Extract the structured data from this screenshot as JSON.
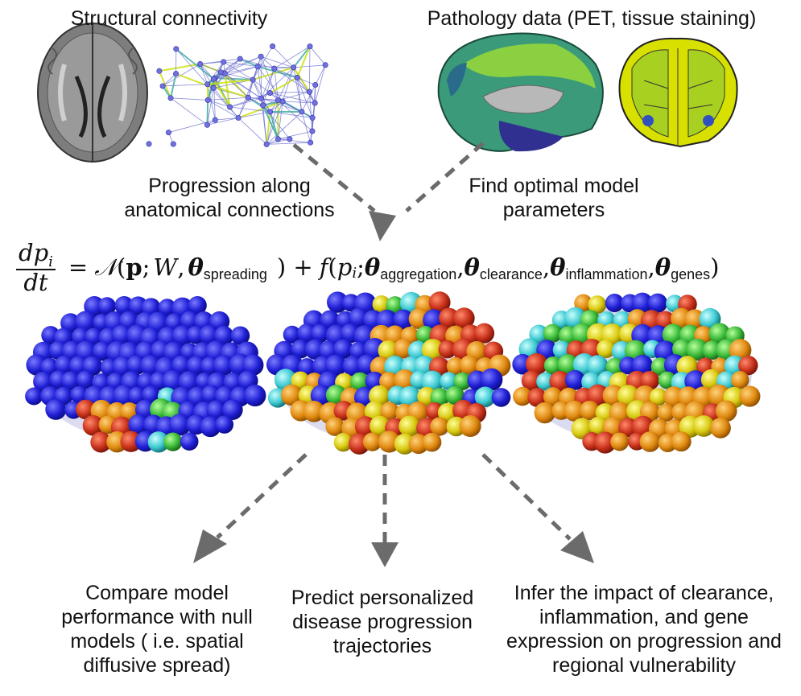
{
  "labels": {
    "structural": "Structural connectivity",
    "pathology": "Pathology data (PET, tissue staining)",
    "progression": "Progression along\nanatomical connections",
    "optimal": "Find optimal model\nparameters",
    "compare": "Compare model\nperformance with null\nmodels ( i.e. spatial\ndiffusive spread)",
    "predict": "Predict personalized\ndisease progression\ntrajectories",
    "infer": "Infer the impact of clearance,\ninflammation, and gene\nexpression on progression and\nregional vulnerability"
  },
  "equation": {
    "lhs_num": "dp",
    "lhs_num_sub": "i",
    "lhs_den": "dt",
    "equals": "=",
    "operator": "𝒩",
    "open": "(",
    "p": "p",
    "sep1": ";",
    "W": "W",
    "comma": ",",
    "theta": "θ",
    "sub_spreading": "spreading",
    "close_plus": ") +",
    "f": "f",
    "p_i": "p",
    "p_i_sub": "i",
    "sub_aggregation": "aggregation",
    "sub_clearance": "clearance",
    "sub_inflammation": "inflammation",
    "sub_genes": "genes",
    "close": ")"
  },
  "colors": {
    "arrow": "#6b6b6b",
    "node_blue": "#2424d8",
    "edge": "#6a6fd0",
    "brain_gray": "#8a8a8a"
  }
}
